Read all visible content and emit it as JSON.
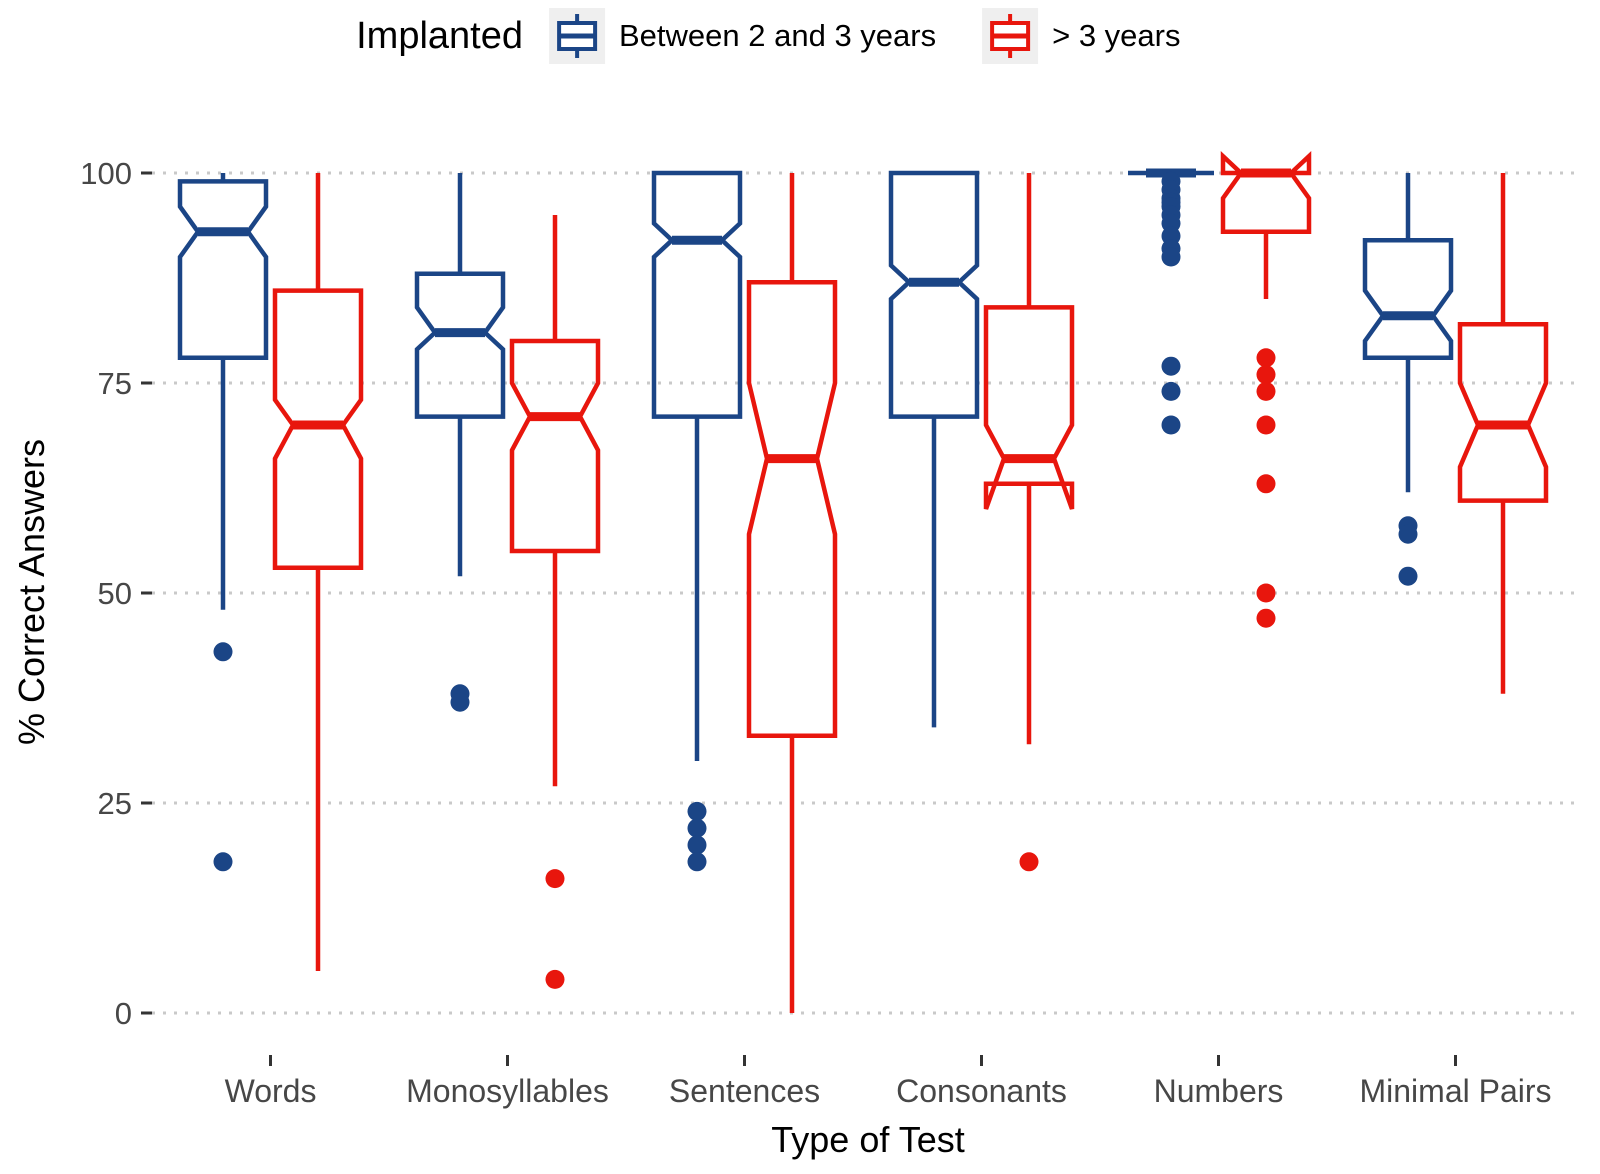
{
  "chart_data": {
    "type": "boxplot",
    "legend_title": "Implanted",
    "xlabel": "Type of Test",
    "ylabel": "% Correct Answers",
    "ylim": [
      0,
      100
    ],
    "yticks": [
      0,
      25,
      50,
      75,
      100
    ],
    "grid": "dotted-horizontal",
    "legend_position": "top",
    "notched": true,
    "categories": [
      "Words",
      "Monosyllables",
      "Sentences",
      "Consonants",
      "Numbers",
      "Minimal Pairs"
    ],
    "grid_color": "#c9c9c9",
    "tick_color": "#333333",
    "tick_label_color": "#474747",
    "series": [
      {
        "name": "Between 2 and 3 years",
        "color": "#1b4586",
        "boxes": [
          {
            "min": 48,
            "q1": 78,
            "median": 93,
            "q3": 99,
            "max": 100,
            "notch_low": 90,
            "notch_high": 96,
            "outliers": [
              43,
              18
            ]
          },
          {
            "min": 52,
            "q1": 71,
            "median": 81,
            "q3": 88,
            "max": 100,
            "notch_low": 79,
            "notch_high": 84,
            "outliers": [
              38,
              37
            ]
          },
          {
            "min": 30,
            "q1": 71,
            "median": 92,
            "q3": 100,
            "max": 100,
            "notch_low": 90,
            "notch_high": 94,
            "outliers": [
              24,
              22,
              20,
              18
            ]
          },
          {
            "min": 34,
            "q1": 71,
            "median": 87,
            "q3": 100,
            "max": 100,
            "notch_low": 85,
            "notch_high": 89,
            "outliers": []
          },
          {
            "min": 100,
            "q1": 100,
            "median": 100,
            "q3": 100,
            "max": 100,
            "notch_low": 100,
            "notch_high": 100,
            "outliers": [
              99,
              98,
              97,
              96.5,
              96,
              95,
              94,
              92.5,
              91,
              90,
              77,
              74,
              70
            ]
          },
          {
            "min": 62,
            "q1": 78,
            "median": 83,
            "q3": 92,
            "max": 100,
            "notch_low": 80,
            "notch_high": 86,
            "outliers": [
              58,
              57,
              52
            ]
          }
        ]
      },
      {
        "name": "> 3 years",
        "color": "#e8160d",
        "boxes": [
          {
            "min": 5,
            "q1": 53,
            "median": 70,
            "q3": 86,
            "max": 100,
            "notch_low": 66,
            "notch_high": 73,
            "outliers": []
          },
          {
            "min": 27,
            "q1": 55,
            "median": 71,
            "q3": 80,
            "max": 95,
            "notch_low": 67,
            "notch_high": 75,
            "outliers": [
              16,
              4
            ]
          },
          {
            "min": 0,
            "q1": 33,
            "median": 66,
            "q3": 87,
            "max": 100,
            "notch_low": 57,
            "notch_high": 75,
            "outliers": []
          },
          {
            "min": 32,
            "q1": 63,
            "median": 66,
            "q3": 84,
            "max": 100,
            "notch_low": 60,
            "notch_high": 70,
            "outliers": [
              18
            ]
          },
          {
            "min": 85,
            "q1": 93,
            "median": 100,
            "q3": 100,
            "max": 100,
            "notch_low": 97,
            "notch_high": 102,
            "outliers": [
              78,
              76,
              74,
              70,
              63,
              50,
              47
            ]
          },
          {
            "min": 38,
            "q1": 61,
            "median": 70,
            "q3": 82,
            "max": 100,
            "notch_low": 65,
            "notch_high": 75,
            "outliers": []
          }
        ]
      }
    ]
  }
}
